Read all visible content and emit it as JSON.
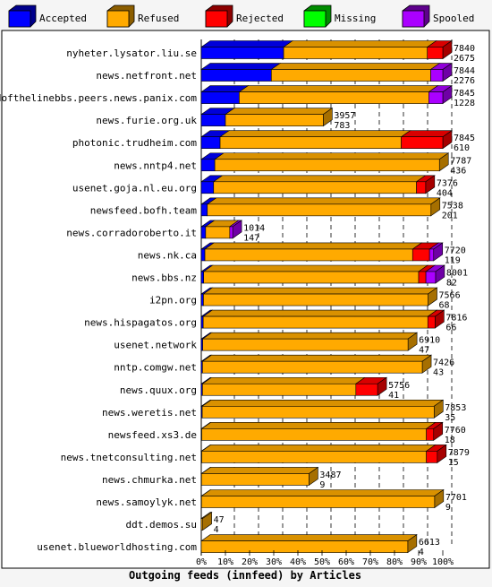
{
  "chart_data": {
    "type": "bar",
    "title": "Outgoing feeds (innfeed) by Articles",
    "xlim": [
      0,
      100
    ],
    "x_ticks": [
      "0%",
      "10%",
      "20%",
      "30%",
      "40%",
      "50%",
      "60%",
      "70%",
      "80%",
      "90%",
      "100%"
    ],
    "legend_position": "top",
    "colors": {
      "Accepted": "#0000ff",
      "Refused": "#ffaa00",
      "Rejected": "#ff0000",
      "Missing": "#00ff00",
      "Spooled": "#aa00ff"
    },
    "series_names": [
      "Accepted",
      "Refused",
      "Rejected",
      "Missing",
      "Spooled"
    ],
    "bars": [
      {
        "label": "nyheter.lysator.liu.se",
        "total": "7840",
        "accepted": "2675",
        "segments": [
          34.1,
          59.5,
          6.4,
          0,
          0
        ]
      },
      {
        "label": "news.netfront.net",
        "total": "7844",
        "accepted": "2276",
        "segments": [
          29.0,
          66.0,
          0,
          0,
          5.0
        ]
      },
      {
        "label": "endofthelinebbs.peers.news.panix.com",
        "total": "7845",
        "accepted": "1228",
        "segments": [
          15.7,
          78.5,
          0,
          0,
          5.8
        ]
      },
      {
        "label": "news.furie.org.uk",
        "total": "3957",
        "accepted": "783",
        "segments": [
          10.0,
          40.5,
          0,
          0,
          0
        ]
      },
      {
        "label": "photonic.trudheim.com",
        "total": "7845",
        "accepted": "610",
        "segments": [
          7.8,
          75.0,
          17.2,
          0,
          0
        ]
      },
      {
        "label": "news.nntp4.net",
        "total": "7787",
        "accepted": "436",
        "segments": [
          5.6,
          93.0,
          0,
          0,
          0
        ]
      },
      {
        "label": "usenet.goja.nl.eu.org",
        "total": "7376",
        "accepted": "404",
        "segments": [
          5.1,
          84.0,
          3.8,
          0,
          0
        ]
      },
      {
        "label": "newsfeed.bofh.team",
        "total": "7538",
        "accepted": "201",
        "segments": [
          2.5,
          92.6,
          0,
          0,
          0
        ]
      },
      {
        "label": "news.corradoroberto.it",
        "total": "1014",
        "accepted": "147",
        "segments": [
          1.8,
          10.0,
          0,
          0,
          1.2
        ]
      },
      {
        "label": "news.nk.ca",
        "total": "7720",
        "accepted": "119",
        "segments": [
          1.5,
          86.0,
          7.0,
          0,
          1.7
        ]
      },
      {
        "label": "news.bbs.nz",
        "total": "8001",
        "accepted": "82",
        "segments": [
          1.0,
          89.0,
          3.0,
          0,
          4.0
        ]
      },
      {
        "label": "i2pn.org",
        "total": "7566",
        "accepted": "68",
        "segments": [
          0.9,
          93.0,
          0,
          0,
          0
        ]
      },
      {
        "label": "news.hispagatos.org",
        "total": "7816",
        "accepted": "66",
        "segments": [
          0.8,
          93.0,
          3.0,
          0,
          0
        ]
      },
      {
        "label": "usenet.network",
        "total": "6910",
        "accepted": "47",
        "segments": [
          0.6,
          85.0,
          0,
          0,
          0
        ]
      },
      {
        "label": "nntp.comgw.net",
        "total": "7426",
        "accepted": "43",
        "segments": [
          0.5,
          91.0,
          0,
          0,
          0
        ]
      },
      {
        "label": "news.quux.org",
        "total": "5756",
        "accepted": "41",
        "segments": [
          0.5,
          63.5,
          9.0,
          0,
          0
        ]
      },
      {
        "label": "news.weretis.net",
        "total": "7853",
        "accepted": "35",
        "segments": [
          0.4,
          96.0,
          0,
          0,
          0
        ]
      },
      {
        "label": "newsfeed.xs3.de",
        "total": "7760",
        "accepted": "18",
        "segments": [
          0.2,
          93.0,
          3.0,
          0,
          0
        ]
      },
      {
        "label": "news.tnetconsulting.net",
        "total": "7879",
        "accepted": "15",
        "segments": [
          0.2,
          93.0,
          4.5,
          0,
          0
        ]
      },
      {
        "label": "news.chmurka.net",
        "total": "3487",
        "accepted": "9",
        "segments": [
          0.1,
          44.5,
          0,
          0,
          0
        ]
      },
      {
        "label": "news.samoylyk.net",
        "total": "7701",
        "accepted": "9",
        "segments": [
          0.1,
          96.5,
          0,
          0,
          0
        ]
      },
      {
        "label": "ddt.demos.su",
        "total": "47",
        "accepted": "4",
        "segments": [
          0,
          0.6,
          0,
          0,
          0
        ]
      },
      {
        "label": "usenet.blueworldhosting.com",
        "total": "6613",
        "accepted": "4",
        "segments": [
          0,
          85.5,
          0,
          0,
          0
        ]
      }
    ]
  }
}
